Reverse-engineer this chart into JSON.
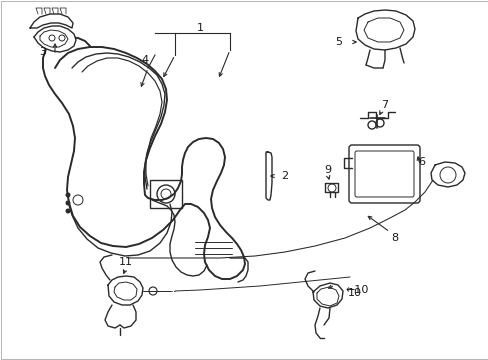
{
  "bg_color": "#ffffff",
  "line_color": "#1a1a1a",
  "fig_width": 4.89,
  "fig_height": 3.6,
  "dpi": 100,
  "border_color": "#999999"
}
